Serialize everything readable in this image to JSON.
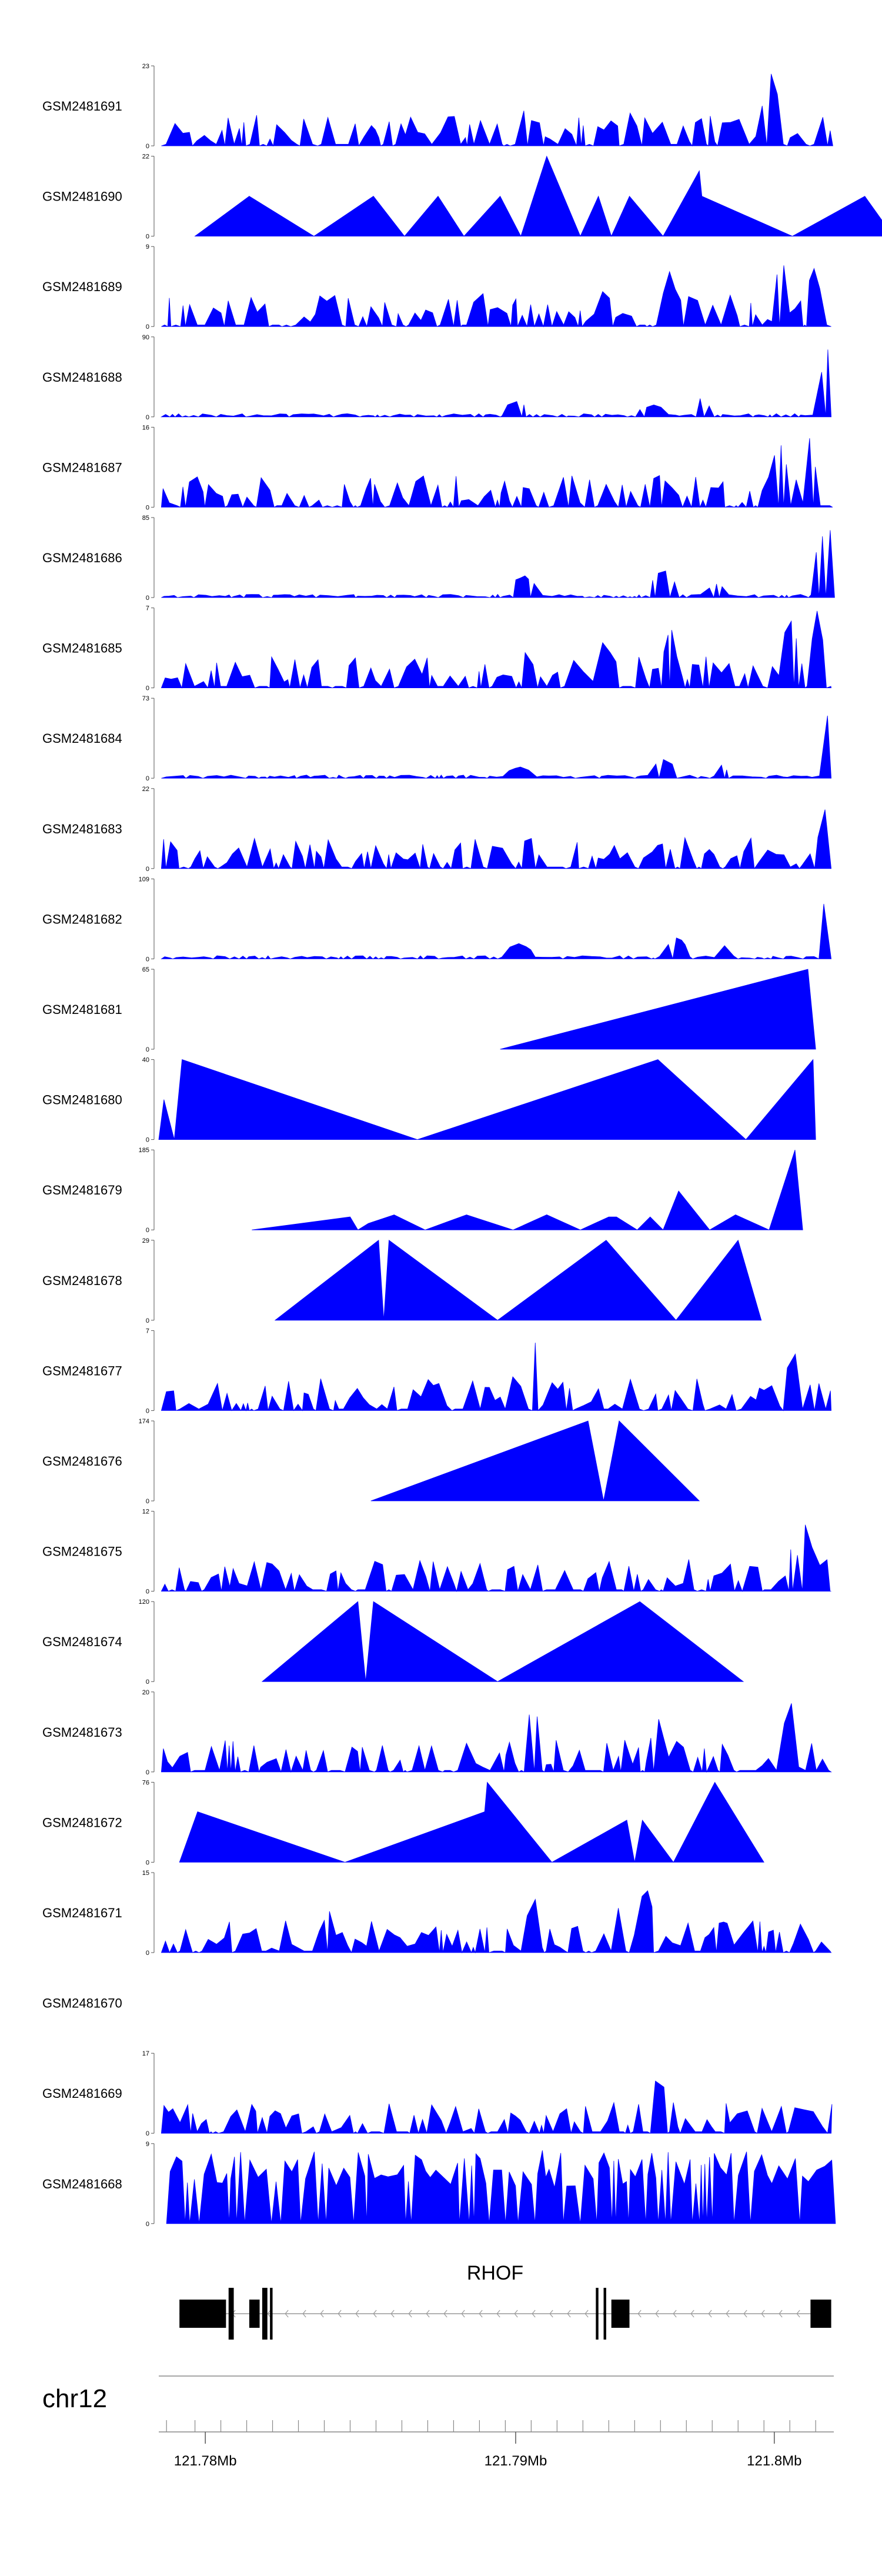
{
  "chart_data": {
    "type": "area",
    "title": "",
    "chromosome": "chr12",
    "x_range": [
      121.7762,
      121.8023
    ],
    "x_unit": "Mb",
    "tracks": [
      {
        "name": "GSM2481691",
        "ymax": "23",
        "ymin": "0",
        "max": 23,
        "pattern": "full",
        "peaks": [
          [
            121.79,
            121.7905,
            12
          ],
          [
            121.7905,
            121.791,
            10
          ],
          [
            121.7922,
            121.7927,
            9
          ],
          [
            121.7942,
            121.7947,
            10
          ],
          [
            121.7982,
            121.7988,
            10
          ],
          [
            121.7995,
            121.8003,
            23
          ],
          [
            121.8008,
            121.8012,
            5
          ]
        ]
      },
      {
        "name": "GSM2481690",
        "ymax": "22",
        "ymin": "0",
        "max": 22,
        "pattern": "points",
        "points": [
          [
            121.7776,
            0
          ],
          [
            121.7797,
            11
          ],
          [
            121.7822,
            0
          ],
          [
            121.7845,
            11
          ],
          [
            121.7857,
            0
          ],
          [
            121.787,
            11
          ],
          [
            121.788,
            0
          ],
          [
            121.7894,
            11
          ],
          [
            121.7902,
            0
          ],
          [
            121.7912,
            22
          ],
          [
            121.7925,
            0
          ],
          [
            121.7932,
            11
          ],
          [
            121.7937,
            0
          ],
          [
            121.7944,
            11
          ],
          [
            121.7957,
            0
          ],
          [
            121.7971,
            18
          ],
          [
            121.7972,
            11
          ],
          [
            121.8007,
            0
          ],
          [
            121.8035,
            11
          ],
          [
            121.8046,
            0
          ]
        ]
      },
      {
        "name": "GSM2481689",
        "ymax": "9",
        "ymin": "0",
        "max": 9,
        "pattern": "full",
        "peaks": [
          [
            121.7885,
            121.789,
            4
          ],
          [
            121.7932,
            121.7937,
            5
          ],
          [
            121.7957,
            121.7962,
            7
          ],
          [
            121.8,
            121.8005,
            9
          ],
          [
            121.8012,
            121.8018,
            7
          ]
        ]
      },
      {
        "name": "GSM2481688",
        "ymax": "90",
        "ymin": "0",
        "max": 90,
        "pattern": "full",
        "peaks": [
          [
            121.7895,
            121.7905,
            20
          ],
          [
            121.7948,
            121.7958,
            16
          ],
          [
            121.7968,
            121.7975,
            24
          ],
          [
            121.8018,
            121.8025,
            90
          ]
        ]
      },
      {
        "name": "GSM2481687",
        "ymax": "16",
        "ymin": "0",
        "max": 16,
        "pattern": "full",
        "peaks": [
          [
            121.7948,
            121.7962,
            7
          ],
          [
            121.7998,
            121.8006,
            14
          ],
          [
            121.8012,
            121.8016,
            16
          ]
        ]
      },
      {
        "name": "GSM2481686",
        "ymax": "85",
        "ymin": "0",
        "max": 85,
        "pattern": "full",
        "peaks": [
          [
            121.7898,
            121.7908,
            26
          ],
          [
            121.7952,
            121.7962,
            32
          ],
          [
            121.7974,
            121.7982,
            16
          ],
          [
            121.8015,
            121.8025,
            85
          ]
        ]
      },
      {
        "name": "GSM2481685",
        "ymax": "7",
        "ymin": "0",
        "max": 7,
        "pattern": "full",
        "peaks": [
          [
            121.7902,
            121.7907,
            4
          ],
          [
            121.7932,
            121.7937,
            5
          ],
          [
            121.7957,
            121.7962,
            6
          ],
          [
            121.8003,
            121.8009,
            7
          ],
          [
            121.8014,
            121.8019,
            7
          ]
        ]
      },
      {
        "name": "GSM2481684",
        "ymax": "73",
        "ymin": "0",
        "max": 73,
        "pattern": "full",
        "peaks": [
          [
            121.7896,
            121.7906,
            12
          ],
          [
            121.7952,
            121.7962,
            20
          ],
          [
            121.7978,
            121.7982,
            14
          ],
          [
            121.8018,
            121.8025,
            73
          ]
        ]
      },
      {
        "name": "GSM2481683",
        "ymax": "22",
        "ymin": "0",
        "max": 22,
        "pattern": "full",
        "peaks": [
          [
            121.7902,
            121.7908,
            10
          ],
          [
            121.7952,
            121.7962,
            8
          ],
          [
            121.7972,
            121.7978,
            6
          ],
          [
            121.8018,
            121.8025,
            22
          ]
        ]
      },
      {
        "name": "GSM2481682",
        "ymax": "109",
        "ymin": "0",
        "max": 109,
        "pattern": "full",
        "peaks": [
          [
            121.7895,
            121.7906,
            24
          ],
          [
            121.7958,
            121.7966,
            34
          ],
          [
            121.7978,
            121.7984,
            20
          ],
          [
            121.8018,
            121.8025,
            109
          ]
        ]
      },
      {
        "name": "GSM2481681",
        "ymax": "65",
        "ymin": "0",
        "max": 65,
        "pattern": "points",
        "points": [
          [
            121.7894,
            0
          ],
          [
            121.8013,
            65
          ],
          [
            121.8016,
            0
          ]
        ]
      },
      {
        "name": "GSM2481680",
        "ymax": "40",
        "ymin": "0",
        "max": 40,
        "pattern": "points",
        "points": [
          [
            121.7762,
            0
          ],
          [
            121.7764,
            20
          ],
          [
            121.7768,
            0
          ],
          [
            121.7771,
            40
          ],
          [
            121.7862,
            0
          ],
          [
            121.7955,
            40
          ],
          [
            121.7989,
            0
          ],
          [
            121.8015,
            40
          ],
          [
            121.8016,
            0
          ]
        ]
      },
      {
        "name": "GSM2481679",
        "ymax": "185",
        "ymin": "0",
        "max": 185,
        "pattern": "points",
        "points": [
          [
            121.7798,
            0
          ],
          [
            121.7836,
            30
          ],
          [
            121.7839,
            0
          ],
          [
            121.7843,
            15
          ],
          [
            121.7853,
            35
          ],
          [
            121.7865,
            0
          ],
          [
            121.7881,
            35
          ],
          [
            121.7899,
            0
          ],
          [
            121.7912,
            35
          ],
          [
            121.7925,
            0
          ],
          [
            121.7936,
            30
          ],
          [
            121.7939,
            30
          ],
          [
            121.7947,
            0
          ],
          [
            121.7952,
            30
          ],
          [
            121.7957,
            0
          ],
          [
            121.7963,
            90
          ],
          [
            121.7975,
            0
          ],
          [
            121.7985,
            35
          ],
          [
            121.7998,
            0
          ],
          [
            121.8008,
            185
          ],
          [
            121.8011,
            0
          ]
        ]
      },
      {
        "name": "GSM2481678",
        "ymax": "29",
        "ymin": "0",
        "max": 29,
        "pattern": "points",
        "points": [
          [
            121.7807,
            0
          ],
          [
            121.7847,
            29
          ],
          [
            121.7849,
            0
          ],
          [
            121.7851,
            29
          ],
          [
            121.7893,
            0
          ],
          [
            121.7935,
            29
          ],
          [
            121.7962,
            0
          ],
          [
            121.7986,
            29
          ],
          [
            121.7995,
            0
          ]
        ]
      },
      {
        "name": "GSM2481677",
        "ymax": "7",
        "ymin": "0",
        "max": 7,
        "pattern": "full",
        "peaks": [
          [
            121.7906,
            121.791,
            7
          ],
          [
            121.7898,
            121.7902,
            4
          ],
          [
            121.8005,
            121.8009,
            7
          ]
        ]
      },
      {
        "name": "GSM2481676",
        "ymax": "174",
        "ymin": "0",
        "max": 174,
        "pattern": "points",
        "points": [
          [
            121.7844,
            0
          ],
          [
            121.7928,
            174
          ],
          [
            121.7934,
            0
          ],
          [
            121.794,
            174
          ],
          [
            121.7971,
            0
          ]
        ]
      },
      {
        "name": "GSM2481675",
        "ymax": "12",
        "ymin": "0",
        "max": 12,
        "pattern": "full",
        "peaks": [
          [
            121.8005,
            121.801,
            8
          ],
          [
            121.801,
            121.8015,
            12
          ]
        ]
      },
      {
        "name": "GSM2481674",
        "ymax": "120",
        "ymin": "0",
        "max": 120,
        "pattern": "points",
        "points": [
          [
            121.7802,
            0
          ],
          [
            121.7839,
            120
          ],
          [
            121.7842,
            0
          ],
          [
            121.7845,
            120
          ],
          [
            121.7893,
            0
          ],
          [
            121.7948,
            120
          ],
          [
            121.7988,
            0
          ]
        ]
      },
      {
        "name": "GSM2481673",
        "ymax": "20",
        "ymin": "0",
        "max": 20,
        "pattern": "full",
        "peaks": [
          [
            121.7904,
            121.791,
            20
          ],
          [
            121.7952,
            121.7957,
            16
          ],
          [
            121.8003,
            121.8009,
            20
          ]
        ]
      },
      {
        "name": "GSM2481672",
        "ymax": "76",
        "ymin": "0",
        "max": 76,
        "pattern": "points",
        "points": [
          [
            121.777,
            0
          ],
          [
            121.7777,
            48
          ],
          [
            121.7834,
            0
          ],
          [
            121.7888,
            48
          ],
          [
            121.7889,
            76
          ],
          [
            121.7914,
            0
          ],
          [
            121.7943,
            40
          ],
          [
            121.7946,
            0
          ],
          [
            121.7949,
            40
          ],
          [
            121.7961,
            0
          ],
          [
            121.7977,
            76
          ],
          [
            121.7996,
            0
          ]
        ]
      },
      {
        "name": "GSM2481671",
        "ymax": "15",
        "ymin": "0",
        "max": 15,
        "pattern": "full",
        "peaks": [
          [
            121.7825,
            121.783,
            9
          ],
          [
            121.7904,
            121.791,
            12
          ],
          [
            121.7938,
            121.7942,
            10
          ],
          [
            121.7948,
            121.7953,
            15
          ]
        ]
      },
      {
        "name": "GSM2481670",
        "ymax": "",
        "ymin": "",
        "max": 1,
        "pattern": "empty"
      },
      {
        "name": "GSM2481669",
        "ymax": "17",
        "ymin": "0",
        "max": 17,
        "pattern": "full",
        "peaks": [
          [
            121.7895,
            121.7902,
            5
          ],
          [
            121.7953,
            121.7958,
            17
          ],
          [
            121.801,
            121.8016,
            7
          ]
        ]
      },
      {
        "name": "GSM2481668",
        "ymax": "9",
        "ymin": "0",
        "max": 9,
        "pattern": "sparse",
        "peaks": [
          [
            121.7872,
            121.7876,
            6
          ],
          [
            121.7908,
            121.7912,
            9
          ],
          [
            121.7924,
            121.7928,
            9
          ],
          [
            121.7946,
            121.795,
            9
          ],
          [
            121.7987,
            121.7991,
            9
          ]
        ]
      }
    ],
    "gene": {
      "name": "RHOF",
      "strand": "-",
      "start": 121.777,
      "end": 121.8022,
      "exons": [
        [
          121.777,
          121.7788
        ],
        [
          121.7789,
          121.7791
        ],
        [
          121.7797,
          121.7801
        ],
        [
          121.7802,
          121.7804
        ],
        [
          121.7805,
          121.7806
        ],
        [
          121.7931,
          121.7932
        ],
        [
          121.7934,
          121.7935
        ],
        [
          121.7937,
          121.7944
        ],
        [
          121.8014,
          121.8022
        ]
      ]
    },
    "axis": {
      "ticks": [
        121.7765,
        121.7776,
        121.7786,
        121.7796,
        121.7806,
        121.7816,
        121.7826,
        121.7836,
        121.7846,
        121.7856,
        121.7866,
        121.7876,
        121.7886,
        121.7896,
        121.7906,
        121.7916,
        121.7926,
        121.7936,
        121.7946,
        121.7956,
        121.7966,
        121.7976,
        121.7986,
        121.7996,
        121.8006,
        121.8016
      ],
      "major_ticks": [
        121.778,
        121.79,
        121.8
      ],
      "labels": [
        "121.78Mb",
        "121.79Mb",
        "121.8Mb"
      ]
    }
  }
}
